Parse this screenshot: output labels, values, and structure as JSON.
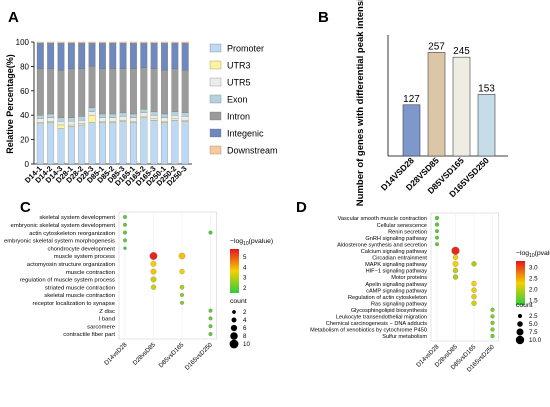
{
  "chart_data": [
    {
      "panel": "A",
      "type": "bar",
      "stacked": true,
      "ylabel": "Relative Percentage(%)",
      "ylim": [
        0,
        100
      ],
      "yticks": [
        0,
        20,
        40,
        60,
        80,
        100
      ],
      "categories": [
        "D14-1",
        "D14-2",
        "D14-3",
        "D28-1",
        "D28-2",
        "D28-3",
        "D85-1",
        "D85-2",
        "D85-3",
        "D165-1",
        "D165-2",
        "D165-3",
        "D250-1",
        "D250-2",
        "D250-3"
      ],
      "legend_position": "right",
      "series": [
        {
          "name": "Promoter",
          "color": "#bcd8f2",
          "values": [
            33,
            34,
            29,
            31,
            32,
            34,
            34,
            34,
            35,
            34,
            38,
            36,
            34,
            36,
            35
          ]
        },
        {
          "name": "UTR3",
          "color": "#fcf49b",
          "values": [
            1,
            1,
            3,
            1,
            1,
            6,
            1,
            1,
            1,
            1,
            1,
            1,
            1,
            1,
            1
          ]
        },
        {
          "name": "UTR5",
          "color": "#ececec",
          "values": [
            3,
            3,
            3,
            3,
            3,
            3,
            3,
            3,
            3,
            3,
            3,
            3,
            3,
            3,
            3
          ]
        },
        {
          "name": "Exon",
          "color": "#b4d2dc",
          "values": [
            3,
            3,
            3,
            3,
            3,
            3,
            3,
            3,
            3,
            3,
            3,
            3,
            3,
            3,
            3
          ]
        },
        {
          "name": "Intron",
          "color": "#9b9b9b",
          "values": [
            38,
            37,
            39,
            40,
            39,
            34,
            37,
            37,
            36,
            37,
            34,
            35,
            36,
            35,
            35
          ]
        },
        {
          "name": "Integenic",
          "color": "#6f88bd",
          "values": [
            21,
            21,
            22,
            21,
            21,
            19,
            21,
            21,
            21,
            21,
            20,
            21,
            22,
            21,
            22
          ]
        },
        {
          "name": "Downstream",
          "color": "#f8c99b",
          "values": [
            1,
            1,
            1,
            1,
            1,
            1,
            1,
            1,
            1,
            1,
            1,
            1,
            1,
            1,
            1
          ]
        }
      ]
    },
    {
      "panel": "B",
      "type": "bar",
      "ylabel": "Number of genes with differential peak intensity",
      "categories": [
        "D14VSD28",
        "D28VSD85",
        "D85VSD165",
        "D165VSD250"
      ],
      "values": [
        127,
        257,
        245,
        153
      ],
      "labels": [
        "127",
        "257",
        "245",
        "153"
      ],
      "colors": [
        "#7f98cb",
        "#dcc6a8",
        "#efece3",
        "#c4dde9"
      ],
      "ylim": [
        0,
        300
      ]
    },
    {
      "panel": "C",
      "type": "scatter",
      "categories": [
        "D14vsD28",
        "D28vsD85",
        "D85vsD165",
        "D165vsD250"
      ],
      "terms": [
        "skeletal system development",
        "embryonic skeletal system development",
        "actin cytoskeleton reorganization",
        "embryonic skeletal system morphogenesis",
        "chondrocyte development",
        "muscle system process",
        "actomyosin structure organization",
        "muscle contraction",
        "regulation of muscle system process",
        "striated muscle contraction",
        "skeletal muscle contraction",
        "receptor localization to synapse",
        "Z disc",
        "I band",
        "sarcomere",
        "contractile fiber part"
      ],
      "points": [
        {
          "term": 0,
          "x": 0,
          "value": 2.0,
          "count": 2
        },
        {
          "term": 1,
          "x": 0,
          "value": 2.0,
          "count": 2
        },
        {
          "term": 2,
          "x": 0,
          "value": 2.0,
          "count": 2
        },
        {
          "term": 2,
          "x": 3,
          "value": 1.8,
          "count": 2
        },
        {
          "term": 3,
          "x": 0,
          "value": 2.0,
          "count": 2
        },
        {
          "term": 4,
          "x": 0,
          "value": 1.5,
          "count": 1
        },
        {
          "term": 5,
          "x": 1,
          "value": 5.6,
          "count": 8
        },
        {
          "term": 5,
          "x": 2,
          "value": 3.8,
          "count": 6
        },
        {
          "term": 6,
          "x": 1,
          "value": 3.6,
          "count": 5
        },
        {
          "term": 7,
          "x": 1,
          "value": 3.8,
          "count": 5
        },
        {
          "term": 7,
          "x": 2,
          "value": 3.6,
          "count": 4
        },
        {
          "term": 8,
          "x": 1,
          "value": 3.2,
          "count": 5
        },
        {
          "term": 9,
          "x": 1,
          "value": 3.2,
          "count": 4
        },
        {
          "term": 9,
          "x": 2,
          "value": 2.8,
          "count": 3
        },
        {
          "term": 10,
          "x": 2,
          "value": 2.5,
          "count": 2
        },
        {
          "term": 11,
          "x": 2,
          "value": 2.3,
          "count": 2
        },
        {
          "term": 12,
          "x": 3,
          "value": 2.0,
          "count": 2
        },
        {
          "term": 13,
          "x": 3,
          "value": 2.0,
          "count": 2
        },
        {
          "term": 14,
          "x": 3,
          "value": 2.0,
          "count": 2
        },
        {
          "term": 15,
          "x": 3,
          "value": 2.0,
          "count": 2
        }
      ],
      "color_legend": {
        "title_main": "−log",
        "title_sub": "10",
        "title_tail": "(pvalue)",
        "ticks": [
          2,
          3,
          4,
          5
        ],
        "range": [
          1.5,
          5.8
        ]
      },
      "size_legend": {
        "title": "count",
        "values": [
          2,
          4,
          6,
          8,
          10
        ]
      }
    },
    {
      "panel": "D",
      "type": "scatter",
      "categories": [
        "D14vsD28",
        "D28vsD85",
        "D85vsD165",
        "D165vsD250"
      ],
      "terms": [
        "Vascular smooth muscle contraction",
        "Cellular senescence",
        "Renin secretion",
        "GnRH signaling pathway",
        "Aldosterone synthesis and secretion",
        "Calcium signaling pathway",
        "Circadian entrainment",
        "MAPK signaling pathway",
        "HIF−1 signaling pathway",
        "Motor proteins",
        "Apelin signaling pathway",
        "cAMP signaling pathway",
        "Regulation of actin cytoskeleton",
        "Ras signaling pathway",
        "Glycosphingolipid biosynthesis",
        "Leukocyte transendothelial migration",
        "Chemical carcinogenesis − DNA adducts",
        "Metabolism of xenobiotics by cytochrome P450",
        "Sulfur metabolism"
      ],
      "points": [
        {
          "term": 0,
          "x": 0,
          "value": 1.5,
          "count": 2
        },
        {
          "term": 1,
          "x": 0,
          "value": 1.5,
          "count": 2
        },
        {
          "term": 2,
          "x": 0,
          "value": 1.5,
          "count": 1.5
        },
        {
          "term": 3,
          "x": 0,
          "value": 1.5,
          "count": 1.5
        },
        {
          "term": 4,
          "x": 0,
          "value": 1.5,
          "count": 1.5
        },
        {
          "term": 5,
          "x": 1,
          "value": 3.2,
          "count": 9
        },
        {
          "term": 6,
          "x": 1,
          "value": 2.3,
          "count": 4
        },
        {
          "term": 7,
          "x": 1,
          "value": 2.3,
          "count": 5
        },
        {
          "term": 7,
          "x": 2,
          "value": 1.9,
          "count": 4
        },
        {
          "term": 8,
          "x": 1,
          "value": 2.0,
          "count": 4
        },
        {
          "term": 9,
          "x": 1,
          "value": 1.9,
          "count": 4
        },
        {
          "term": 10,
          "x": 2,
          "value": 2.3,
          "count": 4
        },
        {
          "term": 11,
          "x": 2,
          "value": 2.2,
          "count": 4
        },
        {
          "term": 12,
          "x": 2,
          "value": 2.2,
          "count": 4
        },
        {
          "term": 13,
          "x": 2,
          "value": 2.1,
          "count": 4
        },
        {
          "term": 14,
          "x": 3,
          "value": 1.7,
          "count": 2
        },
        {
          "term": 15,
          "x": 3,
          "value": 1.7,
          "count": 2
        },
        {
          "term": 16,
          "x": 3,
          "value": 1.7,
          "count": 2
        },
        {
          "term": 17,
          "x": 3,
          "value": 1.7,
          "count": 2
        },
        {
          "term": 18,
          "x": 3,
          "value": 1.6,
          "count": 2
        }
      ],
      "color_legend": {
        "title_main": "−log",
        "title_sub": "10",
        "title_tail": "(pvalue)",
        "ticks": [
          "1.5",
          "2.0",
          "2.5",
          "3.0"
        ],
        "range": [
          1.3,
          3.3
        ]
      },
      "size_legend": {
        "title": "count",
        "values": [
          "2.5",
          "5.0",
          "7.5",
          "10.0"
        ]
      }
    }
  ]
}
